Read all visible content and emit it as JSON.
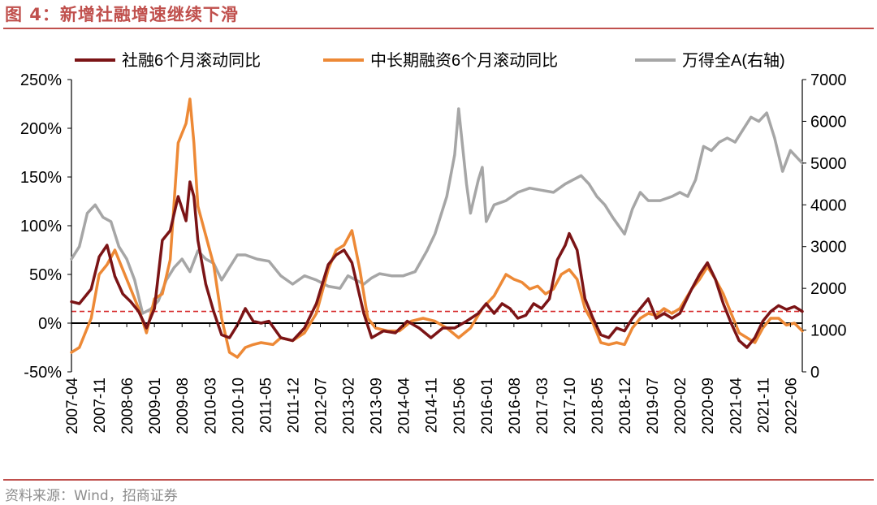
{
  "figure": {
    "title": "图 4：新增社融增速继续下滑",
    "source": "资料来源：Wind，招商证券"
  },
  "chart_data": {
    "type": "line",
    "title": "新增社融增速继续下滑",
    "legend_position": "top",
    "x_start": "2007-04",
    "x_end": "2022-09",
    "x_tick_labels": [
      "2007-04",
      "2007-11",
      "2008-06",
      "2009-01",
      "2009-08",
      "2010-03",
      "2010-10",
      "2011-05",
      "2011-12",
      "2012-07",
      "2013-02",
      "2013-09",
      "2014-04",
      "2014-11",
      "2015-06",
      "2016-01",
      "2016-08",
      "2017-03",
      "2017-10",
      "2018-05",
      "2018-12",
      "2019-07",
      "2020-02",
      "2020-09",
      "2021-04",
      "2021-11",
      "2022-06"
    ],
    "y_left": {
      "range": [
        -0.5,
        2.5
      ],
      "tick_labels": [
        "-50%",
        "0%",
        "50%",
        "100%",
        "150%",
        "200%",
        "250%"
      ],
      "ticks": [
        -0.5,
        0,
        0.5,
        1,
        1.5,
        2,
        2.5
      ]
    },
    "y_right": {
      "range": [
        0,
        7000
      ],
      "tick_labels": [
        "0",
        "1000",
        "2000",
        "3000",
        "4000",
        "5000",
        "6000",
        "7000"
      ],
      "ticks": [
        0,
        1000,
        2000,
        3000,
        4000,
        5000,
        6000,
        7000
      ]
    },
    "reference_line": {
      "value": 0.12,
      "axis": "left",
      "style": "dashed",
      "color": "#d62728"
    },
    "series": [
      {
        "name": "社融6个月滚动同比",
        "axis": "left",
        "color": "#7b1416",
        "points": [
          [
            "2007-04",
            0.22
          ],
          [
            "2007-06",
            0.2
          ],
          [
            "2007-09",
            0.35
          ],
          [
            "2007-11",
            0.68
          ],
          [
            "2008-01",
            0.8
          ],
          [
            "2008-03",
            0.48
          ],
          [
            "2008-05",
            0.3
          ],
          [
            "2008-07",
            0.22
          ],
          [
            "2008-09",
            0.12
          ],
          [
            "2008-11",
            -0.05
          ],
          [
            "2009-01",
            0.15
          ],
          [
            "2009-03",
            0.85
          ],
          [
            "2009-05",
            0.95
          ],
          [
            "2009-07",
            1.3
          ],
          [
            "2009-09",
            1.05
          ],
          [
            "2009-10",
            1.45
          ],
          [
            "2009-11",
            1.3
          ],
          [
            "2009-12",
            0.85
          ],
          [
            "2010-02",
            0.4
          ],
          [
            "2010-04",
            0.12
          ],
          [
            "2010-06",
            -0.12
          ],
          [
            "2010-08",
            -0.15
          ],
          [
            "2010-10",
            -0.02
          ],
          [
            "2010-12",
            0.15
          ],
          [
            "2011-02",
            0.02
          ],
          [
            "2011-04",
            0.0
          ],
          [
            "2011-06",
            0.02
          ],
          [
            "2011-09",
            -0.15
          ],
          [
            "2011-12",
            -0.18
          ],
          [
            "2012-03",
            -0.05
          ],
          [
            "2012-06",
            0.2
          ],
          [
            "2012-09",
            0.6
          ],
          [
            "2012-11",
            0.7
          ],
          [
            "2013-01",
            0.75
          ],
          [
            "2013-03",
            0.62
          ],
          [
            "2013-06",
            0.1
          ],
          [
            "2013-08",
            -0.15
          ],
          [
            "2013-11",
            -0.08
          ],
          [
            "2014-02",
            -0.1
          ],
          [
            "2014-05",
            0.02
          ],
          [
            "2014-08",
            -0.05
          ],
          [
            "2014-11",
            -0.15
          ],
          [
            "2015-02",
            -0.05
          ],
          [
            "2015-05",
            -0.05
          ],
          [
            "2015-08",
            0.02
          ],
          [
            "2015-11",
            0.1
          ],
          [
            "2016-01",
            0.2
          ],
          [
            "2016-03",
            0.1
          ],
          [
            "2016-05",
            0.2
          ],
          [
            "2016-07",
            0.15
          ],
          [
            "2016-09",
            0.05
          ],
          [
            "2016-11",
            0.08
          ],
          [
            "2017-01",
            0.2
          ],
          [
            "2017-03",
            0.15
          ],
          [
            "2017-05",
            0.25
          ],
          [
            "2017-07",
            0.65
          ],
          [
            "2017-09",
            0.8
          ],
          [
            "2017-10",
            0.92
          ],
          [
            "2017-12",
            0.75
          ],
          [
            "2018-02",
            0.25
          ],
          [
            "2018-04",
            0.05
          ],
          [
            "2018-06",
            -0.12
          ],
          [
            "2018-08",
            -0.15
          ],
          [
            "2018-10",
            -0.05
          ],
          [
            "2018-12",
            -0.08
          ],
          [
            "2019-02",
            0.05
          ],
          [
            "2019-04",
            0.15
          ],
          [
            "2019-06",
            0.25
          ],
          [
            "2019-08",
            0.05
          ],
          [
            "2019-10",
            0.1
          ],
          [
            "2019-12",
            0.05
          ],
          [
            "2020-02",
            0.1
          ],
          [
            "2020-05",
            0.35
          ],
          [
            "2020-07",
            0.5
          ],
          [
            "2020-09",
            0.62
          ],
          [
            "2020-11",
            0.45
          ],
          [
            "2021-01",
            0.2
          ],
          [
            "2021-03",
            0.0
          ],
          [
            "2021-05",
            -0.18
          ],
          [
            "2021-07",
            -0.25
          ],
          [
            "2021-09",
            -0.15
          ],
          [
            "2021-11",
            0.02
          ],
          [
            "2022-01",
            0.12
          ],
          [
            "2022-03",
            0.18
          ],
          [
            "2022-05",
            0.14
          ],
          [
            "2022-07",
            0.17
          ],
          [
            "2022-09",
            0.12
          ]
        ]
      },
      {
        "name": "中长期融资6个月滚动同比",
        "axis": "left",
        "color": "#ed8936",
        "points": [
          [
            "2007-04",
            -0.3
          ],
          [
            "2007-06",
            -0.25
          ],
          [
            "2007-09",
            0.05
          ],
          [
            "2007-11",
            0.5
          ],
          [
            "2008-01",
            0.6
          ],
          [
            "2008-03",
            0.75
          ],
          [
            "2008-05",
            0.55
          ],
          [
            "2008-07",
            0.35
          ],
          [
            "2008-09",
            0.15
          ],
          [
            "2008-11",
            -0.1
          ],
          [
            "2009-01",
            0.25
          ],
          [
            "2009-03",
            0.3
          ],
          [
            "2009-05",
            0.65
          ],
          [
            "2009-07",
            1.85
          ],
          [
            "2009-09",
            2.05
          ],
          [
            "2009-10",
            2.3
          ],
          [
            "2009-11",
            1.85
          ],
          [
            "2009-12",
            1.2
          ],
          [
            "2010-02",
            0.9
          ],
          [
            "2010-04",
            0.6
          ],
          [
            "2010-06",
            0.05
          ],
          [
            "2010-08",
            -0.3
          ],
          [
            "2010-10",
            -0.35
          ],
          [
            "2010-12",
            -0.25
          ],
          [
            "2011-02",
            -0.22
          ],
          [
            "2011-04",
            -0.2
          ],
          [
            "2011-07",
            -0.22
          ],
          [
            "2011-09",
            -0.15
          ],
          [
            "2011-12",
            -0.18
          ],
          [
            "2012-03",
            -0.1
          ],
          [
            "2012-06",
            0.1
          ],
          [
            "2012-09",
            0.55
          ],
          [
            "2012-11",
            0.75
          ],
          [
            "2013-01",
            0.8
          ],
          [
            "2013-03",
            0.95
          ],
          [
            "2013-05",
            0.55
          ],
          [
            "2013-07",
            0.05
          ],
          [
            "2013-09",
            -0.05
          ],
          [
            "2013-12",
            -0.08
          ],
          [
            "2014-03",
            -0.08
          ],
          [
            "2014-06",
            0.02
          ],
          [
            "2014-09",
            0.05
          ],
          [
            "2014-12",
            0.02
          ],
          [
            "2015-03",
            -0.05
          ],
          [
            "2015-06",
            -0.15
          ],
          [
            "2015-09",
            -0.05
          ],
          [
            "2015-12",
            0.15
          ],
          [
            "2016-03",
            0.28
          ],
          [
            "2016-06",
            0.5
          ],
          [
            "2016-08",
            0.45
          ],
          [
            "2016-10",
            0.42
          ],
          [
            "2016-12",
            0.35
          ],
          [
            "2017-02",
            0.38
          ],
          [
            "2017-04",
            0.3
          ],
          [
            "2017-06",
            0.35
          ],
          [
            "2017-08",
            0.5
          ],
          [
            "2017-10",
            0.55
          ],
          [
            "2017-12",
            0.45
          ],
          [
            "2018-02",
            0.15
          ],
          [
            "2018-04",
            0.0
          ],
          [
            "2018-06",
            -0.2
          ],
          [
            "2018-08",
            -0.22
          ],
          [
            "2018-10",
            -0.2
          ],
          [
            "2018-12",
            -0.22
          ],
          [
            "2019-02",
            -0.05
          ],
          [
            "2019-04",
            0.05
          ],
          [
            "2019-06",
            0.1
          ],
          [
            "2019-08",
            0.08
          ],
          [
            "2019-10",
            0.15
          ],
          [
            "2019-12",
            0.1
          ],
          [
            "2020-02",
            0.15
          ],
          [
            "2020-05",
            0.35
          ],
          [
            "2020-07",
            0.45
          ],
          [
            "2020-09",
            0.58
          ],
          [
            "2020-11",
            0.45
          ],
          [
            "2021-01",
            0.3
          ],
          [
            "2021-03",
            0.1
          ],
          [
            "2021-05",
            -0.1
          ],
          [
            "2021-07",
            -0.15
          ],
          [
            "2021-09",
            -0.2
          ],
          [
            "2021-11",
            -0.05
          ],
          [
            "2022-01",
            0.05
          ],
          [
            "2022-03",
            0.05
          ],
          [
            "2022-05",
            -0.02
          ],
          [
            "2022-07",
            0.0
          ],
          [
            "2022-09",
            -0.08
          ]
        ]
      },
      {
        "name": "万得全A(右轴)",
        "axis": "right",
        "color": "#a6a6a6",
        "points": [
          [
            "2007-04",
            2700
          ],
          [
            "2007-06",
            3000
          ],
          [
            "2007-08",
            3800
          ],
          [
            "2007-10",
            4000
          ],
          [
            "2007-12",
            3700
          ],
          [
            "2008-02",
            3600
          ],
          [
            "2008-04",
            3000
          ],
          [
            "2008-06",
            2700
          ],
          [
            "2008-08",
            2200
          ],
          [
            "2008-10",
            1400
          ],
          [
            "2008-12",
            1500
          ],
          [
            "2009-02",
            1700
          ],
          [
            "2009-04",
            2200
          ],
          [
            "2009-06",
            2500
          ],
          [
            "2009-08",
            2700
          ],
          [
            "2009-10",
            2400
          ],
          [
            "2009-12",
            2900
          ],
          [
            "2010-02",
            2700
          ],
          [
            "2010-04",
            2600
          ],
          [
            "2010-06",
            2200
          ],
          [
            "2010-08",
            2500
          ],
          [
            "2010-10",
            2800
          ],
          [
            "2010-12",
            2800
          ],
          [
            "2011-03",
            2700
          ],
          [
            "2011-06",
            2650
          ],
          [
            "2011-09",
            2300
          ],
          [
            "2011-12",
            2100
          ],
          [
            "2012-03",
            2300
          ],
          [
            "2012-06",
            2200
          ],
          [
            "2012-09",
            2050
          ],
          [
            "2012-12",
            2000
          ],
          [
            "2013-02",
            2300
          ],
          [
            "2013-04",
            2200
          ],
          [
            "2013-06",
            2100
          ],
          [
            "2013-08",
            2250
          ],
          [
            "2013-10",
            2350
          ],
          [
            "2014-01",
            2300
          ],
          [
            "2014-04",
            2300
          ],
          [
            "2014-07",
            2400
          ],
          [
            "2014-10",
            2900
          ],
          [
            "2014-12",
            3300
          ],
          [
            "2015-03",
            4200
          ],
          [
            "2015-05",
            5200
          ],
          [
            "2015-06",
            6300
          ],
          [
            "2015-08",
            4500
          ],
          [
            "2015-09",
            3800
          ],
          [
            "2015-11",
            4600
          ],
          [
            "2015-12",
            4900
          ],
          [
            "2016-01",
            3600
          ],
          [
            "2016-03",
            4000
          ],
          [
            "2016-06",
            4100
          ],
          [
            "2016-09",
            4300
          ],
          [
            "2016-12",
            4400
          ],
          [
            "2017-03",
            4350
          ],
          [
            "2017-06",
            4300
          ],
          [
            "2017-09",
            4500
          ],
          [
            "2017-11",
            4600
          ],
          [
            "2018-01",
            4700
          ],
          [
            "2018-03",
            4500
          ],
          [
            "2018-05",
            4200
          ],
          [
            "2018-07",
            4000
          ],
          [
            "2018-09",
            3700
          ],
          [
            "2018-12",
            3300
          ],
          [
            "2019-02",
            3900
          ],
          [
            "2019-04",
            4300
          ],
          [
            "2019-06",
            4100
          ],
          [
            "2019-09",
            4100
          ],
          [
            "2019-12",
            4200
          ],
          [
            "2020-02",
            4300
          ],
          [
            "2020-04",
            4200
          ],
          [
            "2020-06",
            4600
          ],
          [
            "2020-08",
            5400
          ],
          [
            "2020-10",
            5300
          ],
          [
            "2020-12",
            5500
          ],
          [
            "2021-02",
            5600
          ],
          [
            "2021-04",
            5500
          ],
          [
            "2021-06",
            5800
          ],
          [
            "2021-08",
            6100
          ],
          [
            "2021-10",
            6000
          ],
          [
            "2021-12",
            6200
          ],
          [
            "2022-02",
            5600
          ],
          [
            "2022-04",
            4800
          ],
          [
            "2022-06",
            5300
          ],
          [
            "2022-09",
            5000
          ]
        ]
      }
    ]
  }
}
